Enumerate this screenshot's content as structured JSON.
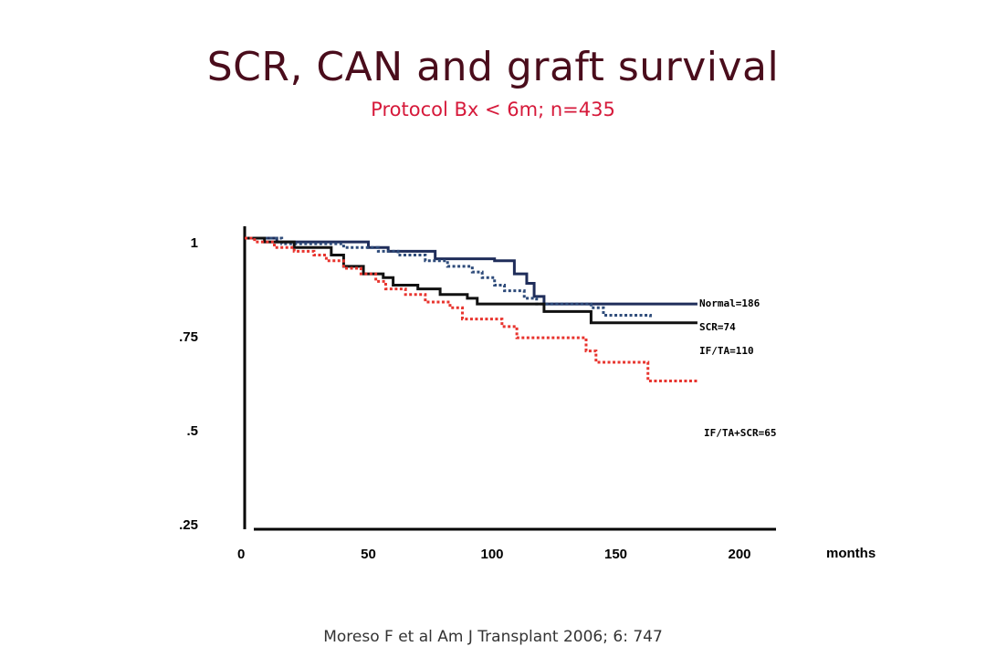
{
  "title": "SCR, CAN and graft survival",
  "subtitle": "Protocol Bx < 6m; n=435",
  "citation": "Moreso F et al Am J Transplant 2006; 6: 747",
  "chart_data": {
    "type": "line",
    "xlabel": "months",
    "ylabel": "",
    "xlim": [
      0,
      215
    ],
    "ylim": [
      0.25,
      1.0
    ],
    "x_ticks": [
      0,
      50,
      100,
      150,
      200
    ],
    "x_tick_labels": [
      "0",
      "50",
      "100",
      "150",
      "200"
    ],
    "y_ticks": [
      1.0,
      0.75,
      0.5,
      0.25
    ],
    "y_tick_labels": [
      "1",
      ".75",
      ".5",
      ".25"
    ],
    "grid": false,
    "series": [
      {
        "name": "Normal=186",
        "color": "#1f2d5a",
        "style": "solid",
        "points": [
          [
            0,
            1.0
          ],
          [
            13,
            1.0
          ],
          [
            13,
            0.99
          ],
          [
            50,
            0.99
          ],
          [
            50,
            0.975
          ],
          [
            58,
            0.975
          ],
          [
            58,
            0.965
          ],
          [
            77,
            0.965
          ],
          [
            77,
            0.945
          ],
          [
            101,
            0.945
          ],
          [
            101,
            0.94
          ],
          [
            109,
            0.94
          ],
          [
            109,
            0.905
          ],
          [
            114,
            0.905
          ],
          [
            114,
            0.88
          ],
          [
            117,
            0.88
          ],
          [
            117,
            0.845
          ],
          [
            121,
            0.845
          ],
          [
            121,
            0.825
          ],
          [
            183,
            0.825
          ]
        ]
      },
      {
        "name": "SCR=74",
        "color": "#2e4b7a",
        "style": "dotted",
        "points": [
          [
            0,
            1.0
          ],
          [
            15,
            1.0
          ],
          [
            15,
            0.985
          ],
          [
            40,
            0.985
          ],
          [
            40,
            0.975
          ],
          [
            54,
            0.975
          ],
          [
            54,
            0.965
          ],
          [
            62,
            0.965
          ],
          [
            62,
            0.955
          ],
          [
            73,
            0.955
          ],
          [
            73,
            0.94
          ],
          [
            82,
            0.94
          ],
          [
            82,
            0.925
          ],
          [
            92,
            0.925
          ],
          [
            92,
            0.91
          ],
          [
            96,
            0.91
          ],
          [
            96,
            0.895
          ],
          [
            101,
            0.895
          ],
          [
            101,
            0.875
          ],
          [
            105,
            0.875
          ],
          [
            105,
            0.86
          ],
          [
            113,
            0.86
          ],
          [
            113,
            0.84
          ],
          [
            118,
            0.84
          ],
          [
            118,
            0.825
          ],
          [
            140,
            0.825
          ],
          [
            140,
            0.815
          ],
          [
            145,
            0.815
          ],
          [
            145,
            0.795
          ],
          [
            164,
            0.795
          ],
          [
            164,
            0.785
          ]
        ]
      },
      {
        "name": "IF/TA=110",
        "color": "#111111",
        "style": "solid",
        "points": [
          [
            0,
            1.0
          ],
          [
            8,
            1.0
          ],
          [
            8,
            0.99
          ],
          [
            20,
            0.99
          ],
          [
            20,
            0.975
          ],
          [
            35,
            0.975
          ],
          [
            35,
            0.955
          ],
          [
            40,
            0.955
          ],
          [
            40,
            0.925
          ],
          [
            48,
            0.925
          ],
          [
            48,
            0.905
          ],
          [
            56,
            0.905
          ],
          [
            56,
            0.895
          ],
          [
            60,
            0.895
          ],
          [
            60,
            0.875
          ],
          [
            70,
            0.875
          ],
          [
            70,
            0.865
          ],
          [
            79,
            0.865
          ],
          [
            79,
            0.85
          ],
          [
            90,
            0.85
          ],
          [
            90,
            0.84
          ],
          [
            94,
            0.84
          ],
          [
            94,
            0.825
          ],
          [
            121,
            0.825
          ],
          [
            121,
            0.805
          ],
          [
            140,
            0.805
          ],
          [
            140,
            0.775
          ],
          [
            183,
            0.775
          ]
        ]
      },
      {
        "name": "IF/TA+SCR=65",
        "color": "#e8342e",
        "style": "dotted",
        "points": [
          [
            0,
            1.0
          ],
          [
            4,
            1.0
          ],
          [
            4,
            0.99
          ],
          [
            12,
            0.99
          ],
          [
            12,
            0.975
          ],
          [
            20,
            0.975
          ],
          [
            20,
            0.965
          ],
          [
            28,
            0.965
          ],
          [
            28,
            0.955
          ],
          [
            33,
            0.955
          ],
          [
            33,
            0.94
          ],
          [
            40,
            0.94
          ],
          [
            40,
            0.92
          ],
          [
            47,
            0.92
          ],
          [
            47,
            0.905
          ],
          [
            53,
            0.905
          ],
          [
            53,
            0.885
          ],
          [
            57,
            0.885
          ],
          [
            57,
            0.865
          ],
          [
            65,
            0.865
          ],
          [
            65,
            0.85
          ],
          [
            73,
            0.85
          ],
          [
            73,
            0.83
          ],
          [
            83,
            0.83
          ],
          [
            83,
            0.815
          ],
          [
            88,
            0.815
          ],
          [
            88,
            0.785
          ],
          [
            104,
            0.785
          ],
          [
            104,
            0.765
          ],
          [
            110,
            0.765
          ],
          [
            110,
            0.735
          ],
          [
            138,
            0.735
          ],
          [
            138,
            0.7
          ],
          [
            142,
            0.7
          ],
          [
            142,
            0.67
          ],
          [
            163,
            0.67
          ],
          [
            163,
            0.62
          ],
          [
            183,
            0.62
          ]
        ]
      }
    ]
  }
}
